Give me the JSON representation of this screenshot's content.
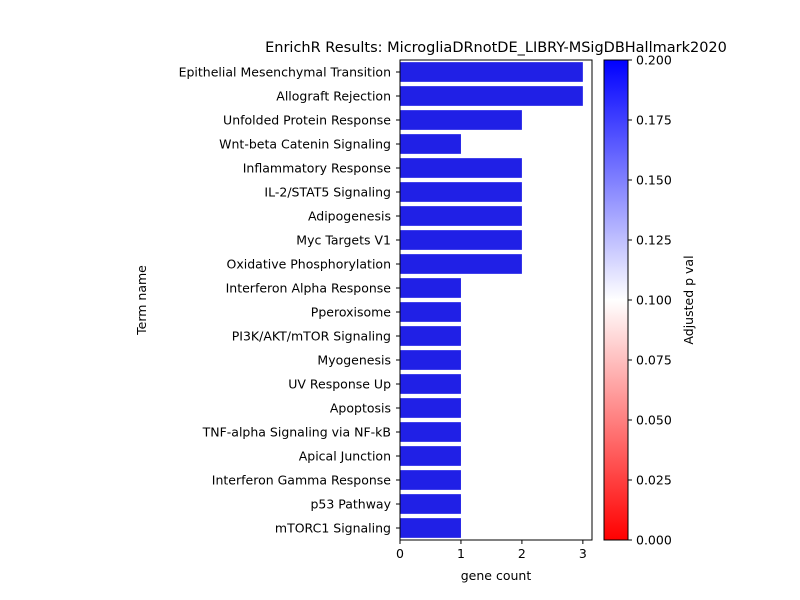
{
  "chart_data": {
    "type": "bar",
    "orientation": "horizontal",
    "title": "EnrichR Results: MicrogliaDRnotDE_LIBRY-MSigDBHallmark2020",
    "xlabel": "gene count",
    "ylabel": "Term name",
    "xlim": [
      0,
      3.15
    ],
    "xticks": [
      0,
      1,
      2,
      3
    ],
    "categories": [
      "Epithelial Mesenchymal Transition",
      "Allograft Rejection",
      "Unfolded Protein Response",
      "Wnt-beta Catenin Signaling",
      "Inflammatory Response",
      "IL-2/STAT5 Signaling",
      "Adipogenesis",
      "Myc Targets V1",
      "Oxidative Phosphorylation",
      "Interferon Alpha Response",
      "Pperoxisome",
      "PI3K/AKT/mTOR  Signaling",
      "Myogenesis",
      "UV Response Up",
      "Apoptosis",
      "TNF-alpha Signaling via NF-kB",
      "Apical Junction",
      "Interferon Gamma Response",
      "p53 Pathway",
      "mTORC1 Signaling"
    ],
    "values": [
      3,
      3,
      2,
      1,
      2,
      2,
      2,
      2,
      2,
      1,
      1,
      1,
      1,
      1,
      1,
      1,
      1,
      1,
      1,
      1
    ],
    "bar_color": "#2020e6",
    "colorbar": {
      "label": "Adjusted p val",
      "range": [
        0,
        0.2
      ],
      "ticks": [
        "0.000",
        "0.025",
        "0.050",
        "0.075",
        "0.100",
        "0.125",
        "0.150",
        "0.175",
        "0.200"
      ],
      "colors": [
        "#ff0000",
        "#ffffff",
        "#0000ff"
      ]
    },
    "grid": false,
    "legend": "none"
  }
}
